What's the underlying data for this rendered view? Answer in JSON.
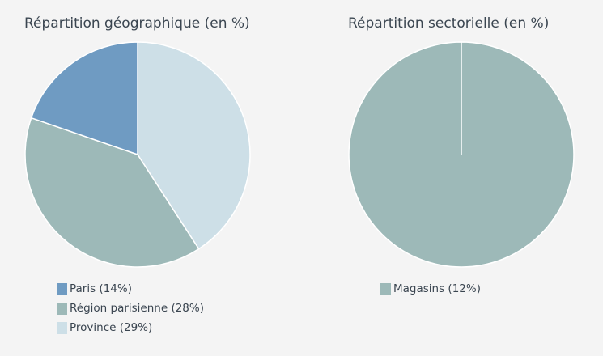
{
  "chart_data": [
    {
      "type": "pie",
      "title": "Répartition géographique (en %)",
      "slices": [
        {
          "label": "Paris (14%)",
          "value": 14,
          "color": "#6f9bc2"
        },
        {
          "label": "Région parisienne (28%)",
          "value": 28,
          "color": "#9db9b8"
        },
        {
          "label": "Province (29%)",
          "value": 29,
          "color": "#cddfe7"
        }
      ],
      "draw_order": [
        2,
        1,
        0
      ],
      "start_angle_deg": 0
    },
    {
      "type": "pie",
      "title": "Répartition sectorielle (en %)",
      "slices": [
        {
          "label": "Magasins (12%)",
          "value": 12,
          "color": "#9db9b8"
        }
      ],
      "draw_order": [
        0
      ],
      "start_angle_deg": 0
    }
  ]
}
